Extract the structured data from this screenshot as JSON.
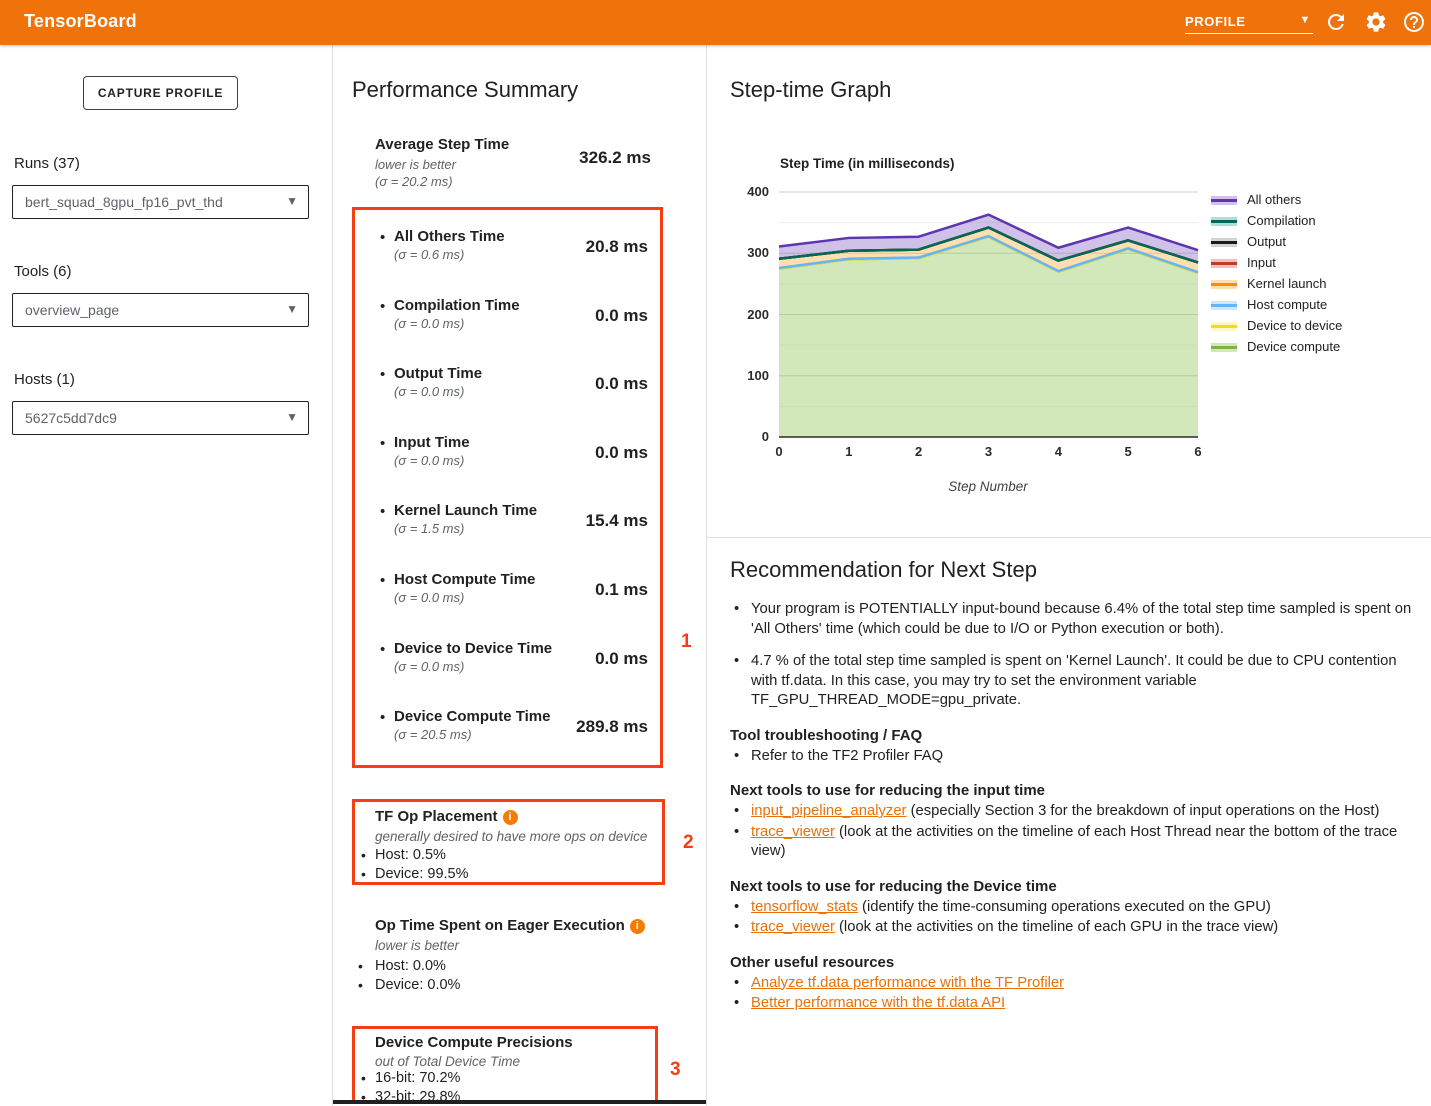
{
  "header": {
    "title": "TensorBoard",
    "nav_selected": "PROFILE",
    "accent_color": "#f0720b"
  },
  "icons": {
    "dropdown_caret": "▾",
    "bullet": "•",
    "info": "i"
  },
  "sidebar": {
    "capture_button": "CAPTURE PROFILE",
    "runs_label": "Runs (37)",
    "runs_value": "bert_squad_8gpu_fp16_pvt_thd",
    "tools_label": "Tools (6)",
    "tools_value": "overview_page",
    "hosts_label": "Hosts (1)",
    "hosts_value": "5627c5dd7dc9"
  },
  "performance_summary": {
    "title": "Performance Summary",
    "average": {
      "label": "Average Step Time",
      "sub1": "lower is better",
      "sub2": "(σ = 20.2 ms)",
      "value": "326.2 ms"
    },
    "metrics": [
      {
        "label": "All Others Time",
        "sigma": "(σ = 0.6 ms)",
        "value": "20.8 ms"
      },
      {
        "label": "Compilation Time",
        "sigma": "(σ = 0.0 ms)",
        "value": "0.0 ms"
      },
      {
        "label": "Output Time",
        "sigma": "(σ = 0.0 ms)",
        "value": "0.0 ms"
      },
      {
        "label": "Input Time",
        "sigma": "(σ = 0.0 ms)",
        "value": "0.0 ms"
      },
      {
        "label": "Kernel Launch Time",
        "sigma": "(σ = 1.5 ms)",
        "value": "15.4 ms"
      },
      {
        "label": "Host Compute Time",
        "sigma": "(σ = 0.0 ms)",
        "value": "0.1 ms"
      },
      {
        "label": "Device to Device Time",
        "sigma": "(σ = 0.0 ms)",
        "value": "0.0 ms"
      },
      {
        "label": "Device Compute Time",
        "sigma": "(σ = 20.5 ms)",
        "value": "289.8 ms"
      }
    ],
    "tf_op_placement": {
      "title": "TF Op Placement",
      "subtitle": "generally desired to have more ops on device",
      "items": [
        "Host: 0.5%",
        "Device: 99.5%"
      ]
    },
    "eager": {
      "title": "Op Time Spent on Eager Execution",
      "subtitle": "lower is better",
      "items": [
        "Host: 0.0%",
        "Device: 0.0%"
      ]
    },
    "precisions": {
      "title": "Device Compute Precisions",
      "subtitle": "out of Total Device Time",
      "items": [
        "16-bit: 70.2%",
        "32-bit: 29.8%"
      ]
    },
    "annotations": {
      "box1": "1",
      "box2": "2",
      "box3": "3"
    },
    "annotation_color": "#f53d16"
  },
  "step_time_graph": {
    "title": "Step-time Graph"
  },
  "chart_data": {
    "type": "area",
    "stacked": true,
    "title": "Step Time (in milliseconds)",
    "xlabel": "Step Number",
    "x": [
      0,
      1,
      2,
      3,
      4,
      5,
      6
    ],
    "ylim": [
      0,
      400
    ],
    "y_major_ticks": [
      0,
      100,
      200,
      300,
      400
    ],
    "y_minor_ticks": [
      50,
      150,
      250,
      350
    ],
    "grid": true,
    "legend_position": "right",
    "series": [
      {
        "name": "Device compute",
        "values": [
          275,
          290,
          292,
          327,
          270,
          307,
          268
        ],
        "line": "#7cb342",
        "fill": "#9ccc65"
      },
      {
        "name": "Device to device",
        "values": [
          0,
          0,
          0,
          0,
          0,
          0,
          0
        ],
        "line": "#f3d926",
        "fill": "#fff176"
      },
      {
        "name": "Host compute",
        "values": [
          1,
          1,
          1,
          1,
          1,
          1,
          1
        ],
        "line": "#64b5f6",
        "fill": "#90caf9"
      },
      {
        "name": "Kernel launch",
        "values": [
          15,
          13,
          13,
          14,
          17,
          13,
          16
        ],
        "line": "#f09300",
        "fill": "#ffb74d"
      },
      {
        "name": "Input",
        "values": [
          0,
          0,
          0,
          0,
          0,
          0,
          0
        ],
        "line": "#c53929",
        "fill": "#e57373"
      },
      {
        "name": "Output",
        "values": [
          0,
          0,
          0,
          0,
          0,
          0,
          0
        ],
        "line": "#1a1a1a",
        "fill": "#9e9e9e"
      },
      {
        "name": "Compilation",
        "values": [
          0,
          0,
          0,
          0,
          0,
          0,
          0
        ],
        "line": "#00695c",
        "fill": "#4db6ac"
      },
      {
        "name": "All others",
        "values": [
          20,
          21,
          21,
          21,
          21,
          21,
          20
        ],
        "line": "#5e35b1",
        "fill": "#9575cd"
      }
    ],
    "totals": [
      311,
      325,
      327,
      363,
      309,
      342,
      305
    ]
  },
  "recommendation": {
    "title": "Recommendation for Next Step",
    "bullets": [
      "Your program is POTENTIALLY input-bound because 6.4% of the total step time sampled is spent on 'All Others' time (which could be due to I/O or Python execution or both).",
      "4.7 % of the total step time sampled is spent on 'Kernel Launch'. It could be due to CPU contention with tf.data. In this case, you may try to set the environment variable TF_GPU_THREAD_MODE=gpu_private."
    ],
    "sections": [
      {
        "heading": "Tool troubleshooting / FAQ",
        "items": [
          {
            "parts": [
              {
                "t": "Refer to the TF2 Profiler FAQ",
                "link": false
              }
            ]
          }
        ]
      },
      {
        "heading": "Next tools to use for reducing the input time",
        "items": [
          {
            "parts": [
              {
                "t": "input_pipeline_analyzer",
                "link": true
              },
              {
                "t": " (especially Section 3 for the breakdown of input operations on the Host)",
                "link": false
              }
            ]
          },
          {
            "parts": [
              {
                "t": "trace_viewer",
                "link": true
              },
              {
                "t": " (look at the activities on the timeline of each Host Thread near the bottom of the trace view)",
                "link": false
              }
            ]
          }
        ]
      },
      {
        "heading": "Next tools to use for reducing the Device time",
        "items": [
          {
            "parts": [
              {
                "t": "tensorflow_stats",
                "link": true
              },
              {
                "t": " (identify the time-consuming operations executed on the GPU)",
                "link": false
              }
            ]
          },
          {
            "parts": [
              {
                "t": "trace_viewer",
                "link": true
              },
              {
                "t": " (look at the activities on the timeline of each GPU in the trace view)",
                "link": false
              }
            ]
          }
        ]
      },
      {
        "heading": "Other useful resources",
        "items": [
          {
            "parts": [
              {
                "t": "Analyze tf.data performance with the TF Profiler",
                "link": true
              }
            ]
          },
          {
            "parts": [
              {
                "t": "Better performance with the tf.data API",
                "link": true
              }
            ]
          }
        ]
      }
    ],
    "link_color": "#e8710a"
  }
}
